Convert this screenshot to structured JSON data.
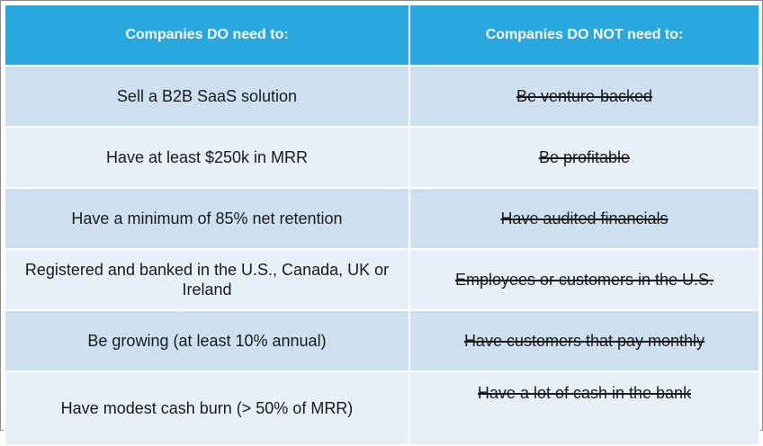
{
  "table": {
    "headers": {
      "do": "Companies DO need to:",
      "not": "Companies DO NOT need to:"
    },
    "rows": [
      {
        "do": "Sell a B2B SaaS solution",
        "not": "Be venture-backed"
      },
      {
        "do": "Have at least $250k in MRR",
        "not": "Be profitable"
      },
      {
        "do": "Have a minimum of 85% net retention",
        "not": "Have audited financials"
      },
      {
        "do": "Registered and banked in the U.S., Canada, UK or Ireland",
        "not": "Employees or customers in the U.S."
      },
      {
        "do": "Be growing (at least 10% annual)",
        "not": "Have customers that pay monthly"
      },
      {
        "do": "Have modest cash burn (> 50% of MRR)",
        "not": "Have a lot of cash in the bank"
      }
    ]
  },
  "colors": {
    "header_bg": "#29a8e0",
    "row_band_dark": "#cde0f0",
    "row_band_light": "#e7eff8"
  }
}
